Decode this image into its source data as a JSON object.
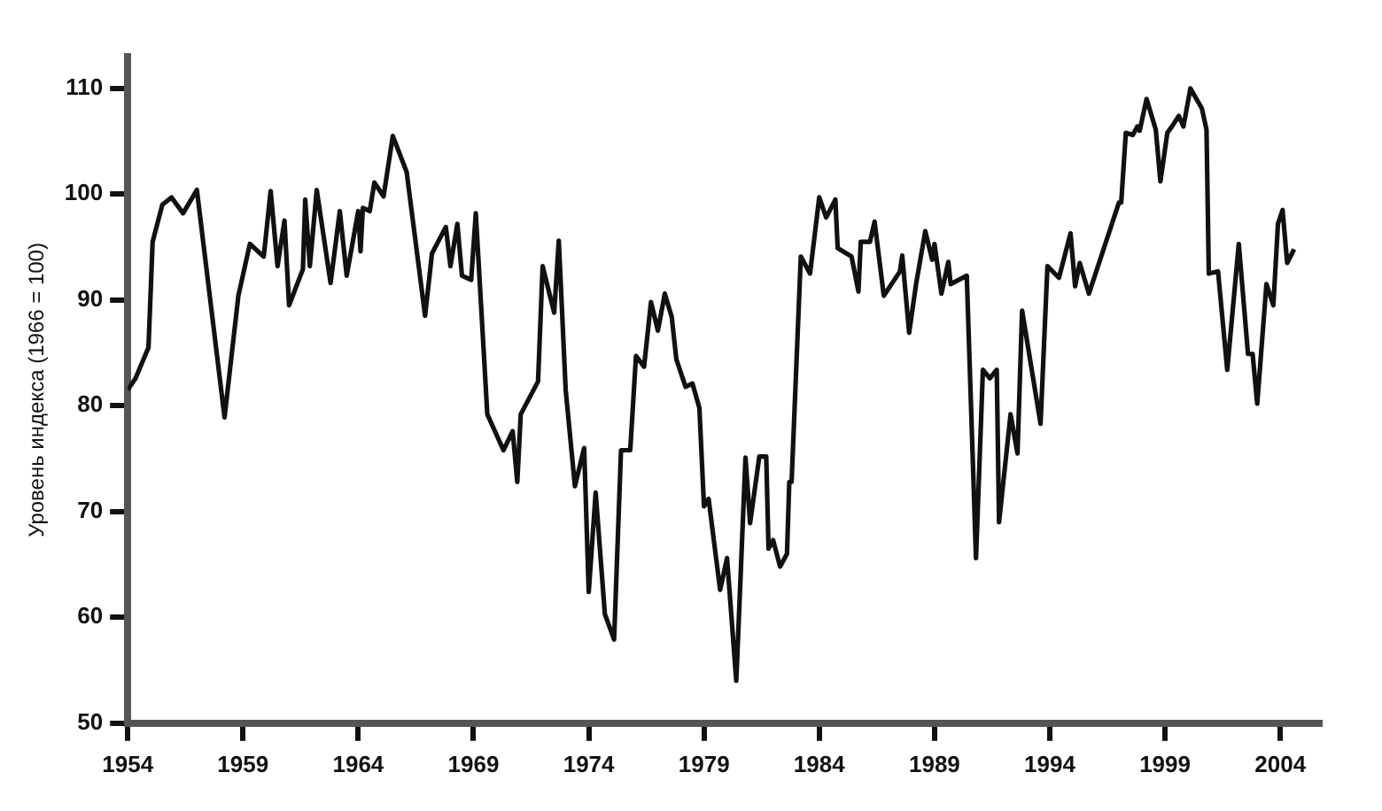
{
  "chart_data": {
    "type": "line",
    "ylabel": "Уровень индекса (1966 = 100)",
    "color": "#111111",
    "grid": false,
    "legend": false,
    "marker": "none",
    "line_style": "solid",
    "xlim": [
      1954,
      2005.8
    ],
    "xticks": [
      1954,
      1959,
      1964,
      1969,
      1974,
      1979,
      1984,
      1989,
      1994,
      1999,
      2004
    ],
    "ylim": [
      50,
      113
    ],
    "yticks": [
      50,
      60,
      70,
      80,
      90,
      100,
      110
    ],
    "x": [
      1954.0,
      1954.34,
      1954.9,
      1955.08,
      1955.5,
      1955.9,
      1956.4,
      1957.0,
      1958.2,
      1958.8,
      1959.3,
      1959.9,
      1960.2,
      1960.5,
      1960.8,
      1961.0,
      1961.6,
      1961.7,
      1961.9,
      1962.2,
      1962.8,
      1963.2,
      1963.5,
      1964.0,
      1964.1,
      1964.2,
      1964.5,
      1964.7,
      1965.1,
      1965.5,
      1966.1,
      1966.9,
      1967.2,
      1967.8,
      1968.0,
      1968.3,
      1968.5,
      1968.9,
      1969.1,
      1969.6,
      1970.3,
      1970.7,
      1970.9,
      1971.05,
      1971.8,
      1972.0,
      1972.5,
      1972.7,
      1973.0,
      1973.4,
      1973.8,
      1974.0,
      1974.3,
      1974.7,
      1975.1,
      1975.4,
      1975.8,
      1976.05,
      1976.4,
      1976.7,
      1977.0,
      1977.3,
      1977.6,
      1977.8,
      1978.2,
      1978.5,
      1978.8,
      1979.0,
      1979.2,
      1979.7,
      1980.0,
      1980.1,
      1980.4,
      1980.8,
      1981.0,
      1981.4,
      1981.7,
      1981.8,
      1982.0,
      1982.3,
      1982.6,
      1982.7,
      1982.8,
      1983.2,
      1983.6,
      1984.0,
      1984.3,
      1984.7,
      1984.8,
      1985.4,
      1985.7,
      1985.8,
      1986.2,
      1986.4,
      1986.8,
      1987.5,
      1987.6,
      1987.9,
      1988.2,
      1988.6,
      1988.9,
      1989.0,
      1989.3,
      1989.6,
      1989.7,
      1990.4,
      1990.8,
      1991.1,
      1991.4,
      1991.7,
      1991.8,
      1992.3,
      1992.6,
      1992.8,
      1993.6,
      1993.9,
      1994.4,
      1994.9,
      1995.1,
      1995.3,
      1995.7,
      1997.0,
      1997.1,
      1997.3,
      1997.6,
      1997.8,
      1997.9,
      1998.2,
      1998.6,
      1998.8,
      1999.1,
      1999.3,
      1999.6,
      1999.8,
      2000.1,
      2000.6,
      2000.8,
      2000.9,
      2001.3,
      2001.7,
      2002.2,
      2002.6,
      2002.8,
      2003.0,
      2003.4,
      2003.7,
      2003.9,
      2004.1,
      2004.3,
      2004.6
    ],
    "values": [
      81.5,
      82.6,
      85.5,
      95.5,
      99,
      99.7,
      98.2,
      100.4,
      78.9,
      90.4,
      95.3,
      94.1,
      100.3,
      93.2,
      97.5,
      89.5,
      92.9,
      99.5,
      93.2,
      100.4,
      91.6,
      98.4,
      92.3,
      98.4,
      94.6,
      98.7,
      98.4,
      101.1,
      99.8,
      105.5,
      102.1,
      88.5,
      94.4,
      96.9,
      93.2,
      97.2,
      92.3,
      91.9,
      98.2,
      79.2,
      75.8,
      77.6,
      72.8,
      79.2,
      82.3,
      93.2,
      88.8,
      95.6,
      81.5,
      72.4,
      76.0,
      62.4,
      71.8,
      60.3,
      57.9,
      75.8,
      75.8,
      84.7,
      83.7,
      89.8,
      87.1,
      90.6,
      88.4,
      84.4,
      81.8,
      82.1,
      79.8,
      70.5,
      71.2,
      62.6,
      65.6,
      62.7,
      54.0,
      75.1,
      68.9,
      75.2,
      75.2,
      66.5,
      67.3,
      64.8,
      66.0,
      72.8,
      72.8,
      94.1,
      92.5,
      99.7,
      97.8,
      99.5,
      94.9,
      94.1,
      90.8,
      95.5,
      95.5,
      97.4,
      90.4,
      92.7,
      94.2,
      86.9,
      91.5,
      96.5,
      93.8,
      95.3,
      90.6,
      93.6,
      91.5,
      92.3,
      65.6,
      83.4,
      82.6,
      83.4,
      69.0,
      79.2,
      75.5,
      89.0,
      78.3,
      93.2,
      92.1,
      96.3,
      91.3,
      93.5,
      90.6,
      99.2,
      99.2,
      105.8,
      105.6,
      106.4,
      106.0,
      109.0,
      106.1,
      101.2,
      105.8,
      106.4,
      107.4,
      106.4,
      110,
      108.1,
      106.1,
      92.5,
      92.7,
      83.4,
      95.3,
      84.9,
      84.9,
      80.2,
      91.5,
      89.5,
      97.2,
      98.5,
      93.5,
      94.8
    ]
  }
}
